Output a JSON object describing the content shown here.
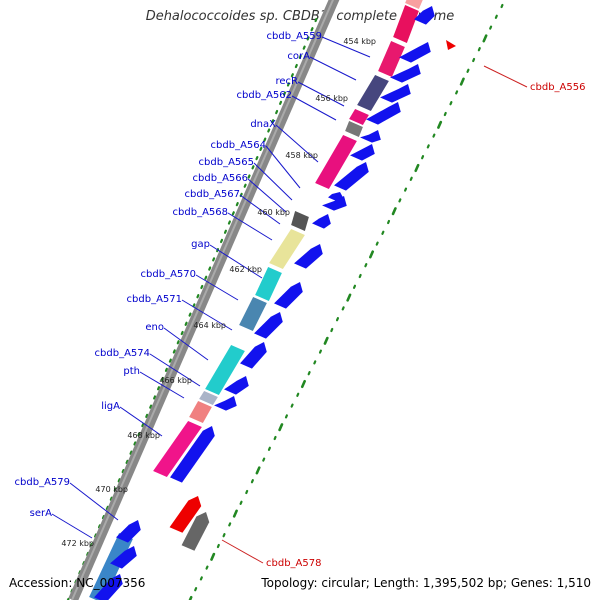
{
  "title": "Dehalococcoides sp. CBDB1, complete genome",
  "accession": "Accession: NC_007356",
  "topology": "Topology: circular; Length: 1,395,502 bp; Genes: 1,510",
  "colors": {
    "gene_label": "#0000cc",
    "hit_label": "#cc0000",
    "tick": "#228822",
    "backbone": "#888888",
    "forward_orf": "#1212ee",
    "reverse_orf": "#666666",
    "hit_orf": "#ee0000"
  },
  "kbp_ticks": [
    "454 kbp",
    "456 kbp",
    "458 kbp",
    "460 kbp",
    "462 kbp",
    "464 kbp",
    "466 kbp",
    "468 kbp",
    "470 kbp",
    "472 kbp"
  ],
  "gene_labels": [
    "cbdb_A559",
    "corA",
    "recR",
    "cbdb_A562",
    "dnaX",
    "cbdb_A564",
    "cbdb_A565",
    "cbdb_A566",
    "cbdb_A567",
    "cbdb_A568",
    "gap",
    "cbdb_A570",
    "cbdb_A571",
    "eno",
    "cbdb_A574",
    "pth",
    "ligA",
    "cbdb_A579",
    "serA"
  ],
  "hit_labels": [
    "cbdb_A556",
    "cbdb_A578"
  ]
}
